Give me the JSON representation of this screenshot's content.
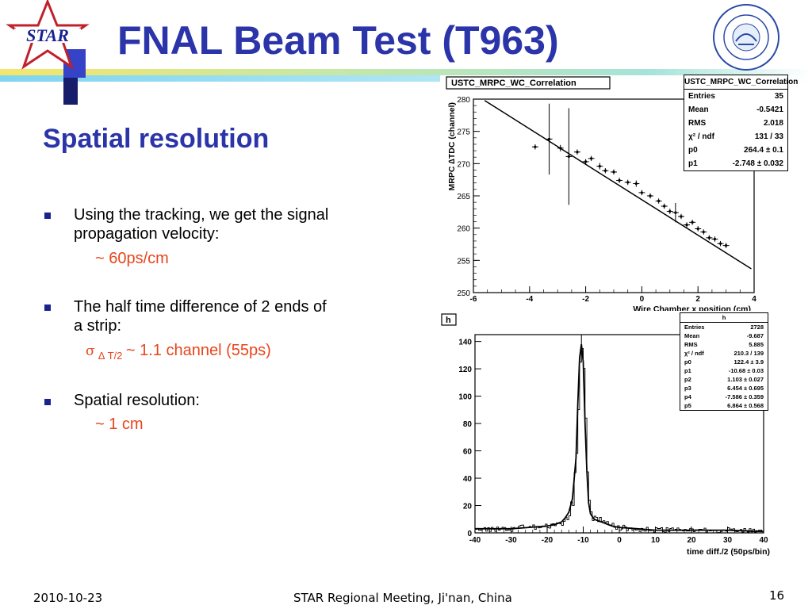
{
  "slide": {
    "title": "FNAL Beam Test (T963)",
    "logo_text": "STAR",
    "subtitle": "Spatial resolution",
    "bullets": [
      {
        "lines": [
          "Using the tracking, we get the signal",
          "propagation velocity:"
        ],
        "sub": "~ 60ps/cm"
      },
      {
        "lines": [
          "The half time difference of 2 ends of",
          "a strip:"
        ],
        "sub_sigma": "σ",
        "sub_delta": "∆ T/2",
        "sub": "~ 1.1 channel (55ps)"
      },
      {
        "lines": [
          "Spatial resolution:"
        ],
        "sub": "~ 1 cm"
      }
    ],
    "footer_date": "2010-10-23",
    "footer_center": "STAR Regional Meeting, Ji'nan, China",
    "page_number": "16"
  },
  "colors": {
    "title": "#2b34a8",
    "subtext": "#e8451c",
    "bullet": "#1a2290"
  },
  "chart_data": [
    {
      "type": "scatter",
      "title": "USTC_MRPC_WC_Correlation",
      "xlabel": "Wire Chamber x position (cm)",
      "ylabel": "MRPC ∆TDC (channel)",
      "xlim": [
        -6,
        4
      ],
      "ylim": [
        250,
        280
      ],
      "xticks": [
        "-6",
        "-4",
        "-2",
        "0",
        "2",
        "4"
      ],
      "yticks": [
        "250",
        "255",
        "260",
        "265",
        "270",
        "275",
        "280"
      ],
      "points": [
        {
          "x": -3.8,
          "y": 272.6,
          "err": 0.4
        },
        {
          "x": -3.3,
          "y": 273.8,
          "err": 5.5
        },
        {
          "x": -2.9,
          "y": 272.4,
          "err": 0.5
        },
        {
          "x": -2.6,
          "y": 271.1,
          "err": 7.5
        },
        {
          "x": -2.3,
          "y": 271.8,
          "err": 0.4
        },
        {
          "x": -2.0,
          "y": 270.3,
          "err": 0.4
        },
        {
          "x": -1.8,
          "y": 270.8,
          "err": 0.4
        },
        {
          "x": -1.5,
          "y": 269.6,
          "err": 0.5
        },
        {
          "x": -1.3,
          "y": 268.9,
          "err": 0.4
        },
        {
          "x": -1.0,
          "y": 268.7,
          "err": 0.4
        },
        {
          "x": -0.8,
          "y": 267.4,
          "err": 0.4
        },
        {
          "x": -0.5,
          "y": 267.1,
          "err": 0.4
        },
        {
          "x": -0.2,
          "y": 266.9,
          "err": 0.5
        },
        {
          "x": 0.0,
          "y": 265.5,
          "err": 0.4
        },
        {
          "x": 0.3,
          "y": 265.0,
          "err": 0.4
        },
        {
          "x": 0.6,
          "y": 264.2,
          "err": 0.4
        },
        {
          "x": 0.8,
          "y": 263.4,
          "err": 0.4
        },
        {
          "x": 1.0,
          "y": 262.6,
          "err": 0.4
        },
        {
          "x": 1.2,
          "y": 262.4,
          "err": 1.5
        },
        {
          "x": 1.4,
          "y": 261.8,
          "err": 0.4
        },
        {
          "x": 1.6,
          "y": 260.5,
          "err": 0.4
        },
        {
          "x": 1.8,
          "y": 260.9,
          "err": 0.4
        },
        {
          "x": 2.0,
          "y": 259.9,
          "err": 0.4
        },
        {
          "x": 2.2,
          "y": 259.4,
          "err": 0.4
        },
        {
          "x": 2.4,
          "y": 258.5,
          "err": 0.4
        },
        {
          "x": 2.6,
          "y": 258.3,
          "err": 0.4
        },
        {
          "x": 2.8,
          "y": 257.6,
          "err": 0.4
        },
        {
          "x": 3.0,
          "y": 257.3,
          "err": 0.4
        }
      ],
      "fit": {
        "p0": 264.4,
        "p1": -2.748
      },
      "stats": {
        "header": "USTC_MRPC_WC_Correlation",
        "rows": [
          [
            "Entries",
            "35"
          ],
          [
            "Mean",
            "-0.5421"
          ],
          [
            "RMS",
            "2.018"
          ],
          [
            "χ² / ndf",
            "131 / 33"
          ],
          [
            "p0",
            "264.4 ± 0.1"
          ],
          [
            "p1",
            "-2.748 ± 0.032"
          ]
        ]
      }
    },
    {
      "type": "line",
      "title": "h",
      "xlabel": "time diff./2 (50ps/bin)",
      "ylabel": "",
      "xlim": [
        -40,
        40
      ],
      "ylim": [
        0,
        145
      ],
      "xticks": [
        "-40",
        "-30",
        "-20",
        "-10",
        "0",
        "10",
        "20",
        "30",
        "40"
      ],
      "yticks": [
        "0",
        "20",
        "40",
        "60",
        "80",
        "100",
        "120",
        "140"
      ],
      "x": [
        -40,
        -35,
        -30,
        -25,
        -20,
        -18,
        -16,
        -15,
        -14,
        -13,
        -12,
        -11.5,
        -11,
        -10.5,
        -10,
        -9.5,
        -9,
        -8.5,
        -8,
        -7,
        -6,
        -5,
        -4,
        -2,
        0,
        5,
        10,
        20,
        30,
        40
      ],
      "y": [
        3,
        3,
        3,
        4,
        5,
        6,
        8,
        11,
        15,
        25,
        55,
        95,
        128,
        138,
        125,
        80,
        45,
        22,
        14,
        10,
        9,
        8,
        7,
        5,
        4,
        3,
        2,
        2,
        2,
        1
      ],
      "stats": {
        "header": "h",
        "rows": [
          [
            "Entries",
            "2728"
          ],
          [
            "Mean",
            "-9.687"
          ],
          [
            "RMS",
            "5.885"
          ],
          [
            "χ² / ndf",
            "210.3 / 139"
          ],
          [
            "p0",
            "122.4 ± 3.9"
          ],
          [
            "p1",
            "-10.68 ± 0.03"
          ],
          [
            "p2",
            "1.103 ± 0.027"
          ],
          [
            "p3",
            "6.454 ± 0.695"
          ],
          [
            "p4",
            "-7.586 ± 0.359"
          ],
          [
            "p5",
            "6.864 ± 0.568"
          ]
        ]
      }
    }
  ]
}
